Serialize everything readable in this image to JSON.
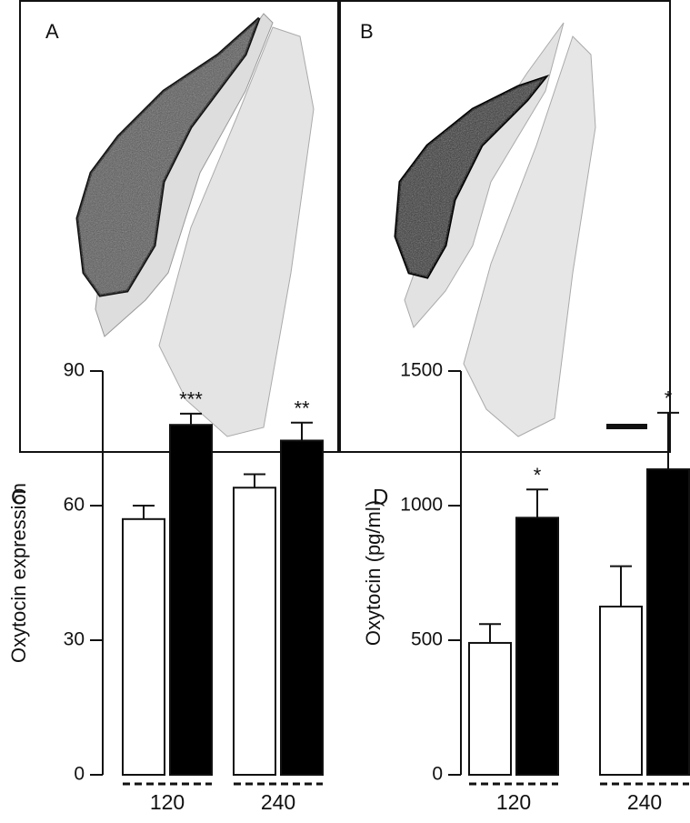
{
  "images": [
    {
      "label": "A"
    },
    {
      "label": "B"
    }
  ],
  "chart_data": [
    {
      "type": "bar",
      "panel_label": "C",
      "y_label": "Oxytocin expression",
      "categories": [
        "120",
        "240"
      ],
      "ylim": [
        0,
        90
      ],
      "yticks": [
        0,
        30,
        60,
        90
      ],
      "series": [
        {
          "color": "#ffffff",
          "values": [
            57,
            64
          ],
          "errors": [
            3,
            3
          ]
        },
        {
          "color": "#000000",
          "values": [
            78,
            74.5
          ],
          "errors": [
            2.5,
            4
          ],
          "annotations": [
            "***",
            "**"
          ]
        }
      ]
    },
    {
      "type": "bar",
      "panel_label": "D",
      "y_label": "Oxytocin (pg/ml)",
      "categories": [
        "120",
        "240"
      ],
      "ylim": [
        0,
        1500
      ],
      "yticks": [
        0,
        500,
        1000,
        1500
      ],
      "series": [
        {
          "color": "#ffffff",
          "values": [
            490,
            625
          ],
          "errors": [
            70,
            150
          ]
        },
        {
          "color": "#000000",
          "values": [
            955,
            1135
          ],
          "errors": [
            105,
            210
          ],
          "annotations": [
            "*",
            "*"
          ]
        }
      ]
    }
  ]
}
